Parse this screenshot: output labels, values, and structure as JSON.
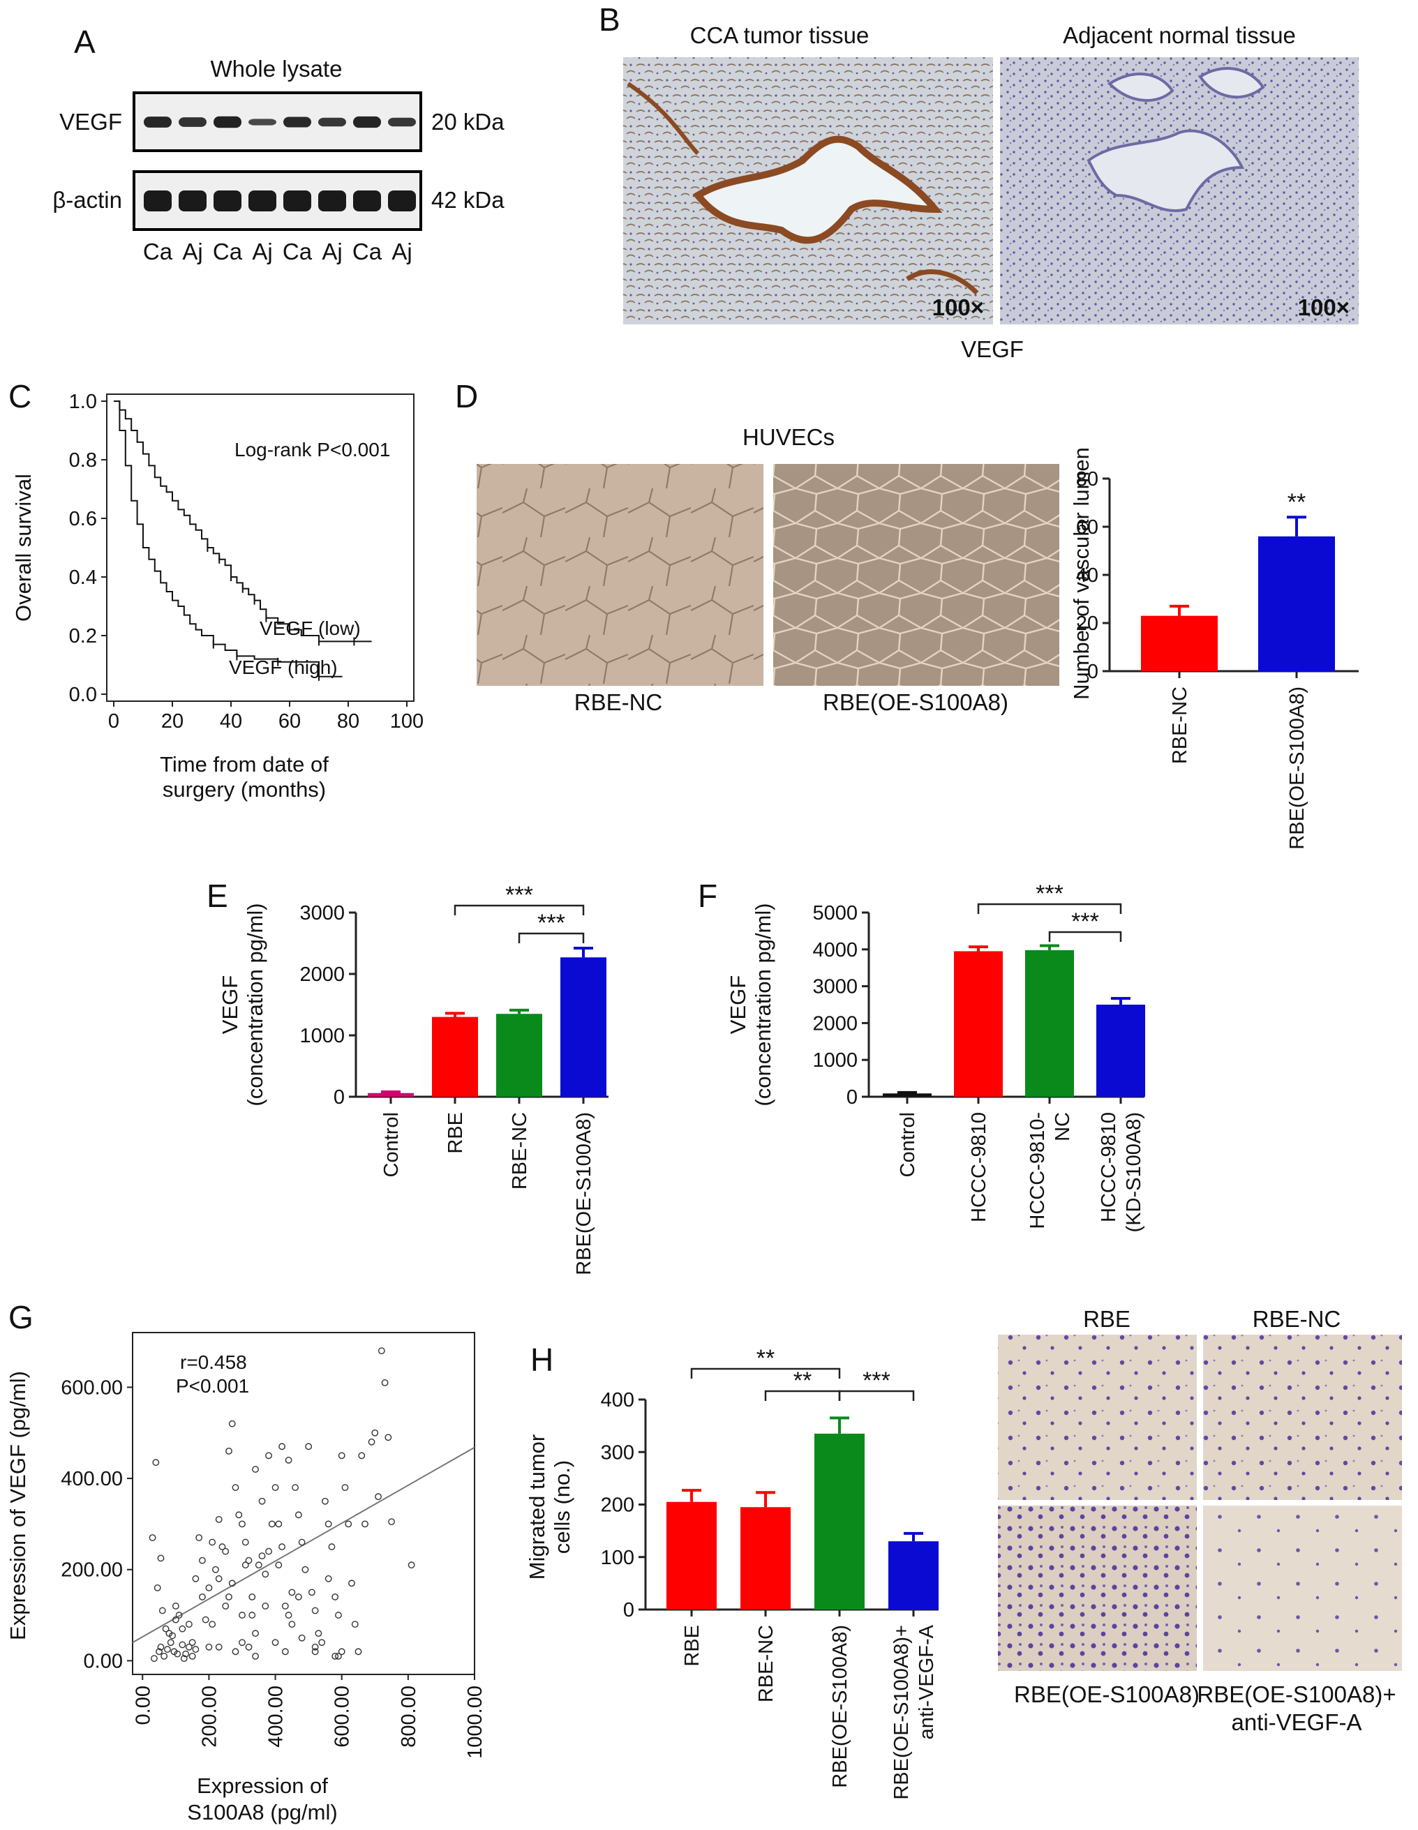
{
  "panels": {
    "A": {
      "label": "A",
      "title": "Whole lysate",
      "rows": [
        {
          "name": "VEGF",
          "size": "20 kDa",
          "intensity": [
            0.88,
            0.76,
            0.92,
            0.52,
            0.84,
            0.7,
            0.9,
            0.7
          ]
        },
        {
          "name": "β-actin",
          "size": "42 kDa",
          "intensity": [
            1,
            1,
            1,
            1,
            1,
            1,
            1,
            1
          ]
        }
      ],
      "lanes": [
        "Ca",
        "Aj",
        "Ca",
        "Aj",
        "Ca",
        "Aj",
        "Ca",
        "Aj"
      ]
    },
    "B": {
      "label": "B",
      "images": [
        {
          "title": "CCA tumor tissue",
          "mag": "100×"
        },
        {
          "title": "Adjacent normal tissue",
          "mag": "100×"
        }
      ],
      "caption": "VEGF"
    },
    "D_images": {
      "label": "D",
      "title": "HUVECs",
      "captions": [
        "RBE-NC",
        "RBE(OE-S100A8)"
      ]
    },
    "H_images": {
      "headers": [
        "RBE",
        "RBE-NC"
      ],
      "footers": [
        "RBE(OE-S100A8)",
        "RBE(OE-S100A8)+",
        "anti-VEGF-A"
      ]
    }
  },
  "colors": {
    "red": "#ff0000",
    "blue": "#0a0ad2",
    "green": "#0a8a1a",
    "magenta": "#d6006e",
    "black": "#111111",
    "axis": "#222222",
    "blot_bg": "#efefef",
    "band": "#1a1a1a",
    "ihc_tumor": "#cfd4da",
    "ihc_normal": "#c8cbd6",
    "huvec": "#c6b2a0",
    "transwell": "#e0d3c4",
    "cell": "#5b48a0"
  },
  "chart_data": [
    {
      "panel": "C",
      "type": "line",
      "xlabel": [
        "Time from date of",
        "surgery (months)"
      ],
      "ylabel": "Overall survival",
      "xlim": [
        0,
        100
      ],
      "ylim": [
        0,
        1.0
      ],
      "xticks": [
        "0",
        "20",
        "40",
        "60",
        "80",
        "100"
      ],
      "yticks": [
        "0.0",
        "0.2",
        "0.4",
        "0.6",
        "0.8",
        "1.0"
      ],
      "annotation": "Log-rank P<0.001",
      "series": [
        {
          "name": "VEGF (low)",
          "x": [
            0,
            2,
            4,
            6,
            8,
            10,
            12,
            14,
            16,
            18,
            20,
            22,
            24,
            26,
            28,
            30,
            32,
            34,
            36,
            38,
            40,
            42,
            44,
            46,
            48,
            50,
            52,
            56,
            60,
            64,
            70,
            76,
            82,
            88
          ],
          "y": [
            1.0,
            0.97,
            0.94,
            0.9,
            0.86,
            0.82,
            0.78,
            0.74,
            0.71,
            0.69,
            0.66,
            0.63,
            0.61,
            0.58,
            0.56,
            0.53,
            0.5,
            0.48,
            0.46,
            0.44,
            0.4,
            0.38,
            0.36,
            0.34,
            0.32,
            0.29,
            0.26,
            0.24,
            0.22,
            0.2,
            0.18,
            0.18,
            0.18,
            0.18
          ]
        },
        {
          "name": "VEGF (high)",
          "x": [
            0,
            2,
            4,
            6,
            8,
            10,
            12,
            14,
            16,
            18,
            20,
            22,
            24,
            26,
            28,
            30,
            34,
            38,
            42,
            48,
            56,
            64,
            70,
            78
          ],
          "y": [
            1.0,
            0.9,
            0.78,
            0.66,
            0.58,
            0.5,
            0.46,
            0.42,
            0.38,
            0.35,
            0.32,
            0.3,
            0.27,
            0.24,
            0.22,
            0.2,
            0.17,
            0.15,
            0.13,
            0.12,
            0.11,
            0.11,
            0.06,
            0.06
          ]
        }
      ]
    },
    {
      "panel": "D",
      "type": "bar",
      "ylabel": "Number of vascular lumen",
      "categories": [
        "RBE-NC",
        "RBE(OE-S100A8)"
      ],
      "values": [
        23,
        56
      ],
      "errors": [
        4,
        8
      ],
      "ylim": [
        0,
        80
      ],
      "yticks": [
        "0",
        "20",
        "40",
        "60",
        "80"
      ],
      "significance": [
        "",
        "**"
      ]
    },
    {
      "panel": "E",
      "type": "bar",
      "ylabel": [
        "VEGF",
        "(concentration pg/ml)"
      ],
      "categories": [
        "Control",
        "RBE",
        "RBE-NC",
        "RBE(OE-S100A8)"
      ],
      "values": [
        60,
        1300,
        1350,
        2270
      ],
      "errors": [
        20,
        60,
        60,
        150
      ],
      "ylim": [
        0,
        3000
      ],
      "yticks": [
        "0",
        "1000",
        "2000",
        "3000"
      ],
      "brackets": [
        {
          "from": 1,
          "to": 3,
          "label": "***"
        },
        {
          "from": 2,
          "to": 3,
          "label": "***"
        }
      ]
    },
    {
      "panel": "F",
      "type": "bar",
      "ylabel": [
        "VEGF",
        "(concentration pg/ml)"
      ],
      "categories": [
        [
          "Control"
        ],
        [
          "HCCC-9810"
        ],
        [
          "HCCC-9810-",
          "NC"
        ],
        [
          "HCCC-9810",
          "(KD-S100A8)"
        ]
      ],
      "values": [
        90,
        3950,
        3980,
        2500
      ],
      "errors": [
        25,
        120,
        120,
        170
      ],
      "ylim": [
        0,
        5000
      ],
      "yticks": [
        "0",
        "1000",
        "2000",
        "3000",
        "4000",
        "5000"
      ],
      "brackets": [
        {
          "from": 1,
          "to": 3,
          "label": "***"
        },
        {
          "from": 2,
          "to": 3,
          "label": "***"
        }
      ]
    },
    {
      "panel": "G",
      "type": "scatter",
      "xlabel": [
        "Expression of",
        "S100A8 (pg/ml)"
      ],
      "ylabel": "Expression of VEGF (pg/ml)",
      "xlim": [
        -30,
        1000
      ],
      "ylim": [
        -30,
        720
      ],
      "xticks": [
        "0.00",
        "200.00",
        "400.00",
        "600.00",
        "800.00",
        "1000.00"
      ],
      "yticks": [
        "0.00",
        "200.00",
        "400.00",
        "600.00"
      ],
      "annotation": [
        "r=0.458",
        "P<0.001"
      ],
      "fit": {
        "x0": -30,
        "y0": 40,
        "x1": 1000,
        "y1": 468
      },
      "points": [
        [
          40,
          435
        ],
        [
          30,
          270
        ],
        [
          55,
          225
        ],
        [
          45,
          160
        ],
        [
          60,
          110
        ],
        [
          70,
          70
        ],
        [
          80,
          60
        ],
        [
          90,
          55
        ],
        [
          100,
          90
        ],
        [
          110,
          100
        ],
        [
          55,
          30
        ],
        [
          50,
          20
        ],
        [
          65,
          10
        ],
        [
          75,
          25
        ],
        [
          95,
          20
        ],
        [
          120,
          35
        ],
        [
          130,
          15
        ],
        [
          140,
          30
        ],
        [
          150,
          40
        ],
        [
          160,
          25
        ],
        [
          105,
          15
        ],
        [
          125,
          5
        ],
        [
          35,
          5
        ],
        [
          85,
          40
        ],
        [
          160,
          180
        ],
        [
          170,
          270
        ],
        [
          180,
          220
        ],
        [
          190,
          90
        ],
        [
          210,
          80
        ],
        [
          230,
          310
        ],
        [
          250,
          240
        ],
        [
          260,
          460
        ],
        [
          270,
          520
        ],
        [
          280,
          380
        ],
        [
          290,
          320
        ],
        [
          300,
          300
        ],
        [
          310,
          210
        ],
        [
          320,
          220
        ],
        [
          330,
          100
        ],
        [
          340,
          60
        ],
        [
          260,
          140
        ],
        [
          270,
          170
        ],
        [
          280,
          20
        ],
        [
          300,
          40
        ],
        [
          320,
          30
        ],
        [
          340,
          10
        ],
        [
          360,
          230
        ],
        [
          370,
          190
        ],
        [
          380,
          240
        ],
        [
          390,
          300
        ],
        [
          400,
          380
        ],
        [
          410,
          210
        ],
        [
          420,
          250
        ],
        [
          430,
          120
        ],
        [
          440,
          100
        ],
        [
          450,
          80
        ],
        [
          460,
          380
        ],
        [
          470,
          320
        ],
        [
          480,
          260
        ],
        [
          490,
          200
        ],
        [
          500,
          470
        ],
        [
          510,
          150
        ],
        [
          520,
          110
        ],
        [
          530,
          60
        ],
        [
          540,
          40
        ],
        [
          550,
          350
        ],
        [
          560,
          300
        ],
        [
          570,
          250
        ],
        [
          580,
          140
        ],
        [
          590,
          100
        ],
        [
          600,
          450
        ],
        [
          610,
          380
        ],
        [
          620,
          300
        ],
        [
          630,
          170
        ],
        [
          640,
          80
        ],
        [
          660,
          450
        ],
        [
          670,
          300
        ],
        [
          690,
          480
        ],
        [
          700,
          500
        ],
        [
          720,
          680
        ],
        [
          730,
          610
        ],
        [
          740,
          490
        ],
        [
          710,
          360
        ],
        [
          750,
          305
        ],
        [
          810,
          210
        ],
        [
          230,
          180
        ],
        [
          210,
          260
        ],
        [
          180,
          140
        ],
        [
          150,
          10
        ],
        [
          200,
          30
        ],
        [
          230,
          30
        ],
        [
          370,
          120
        ],
        [
          400,
          40
        ],
        [
          450,
          150
        ],
        [
          520,
          30
        ],
        [
          590,
          10
        ],
        [
          600,
          20
        ],
        [
          650,
          20
        ],
        [
          470,
          140
        ],
        [
          410,
          300
        ],
        [
          380,
          450
        ],
        [
          360,
          350
        ],
        [
          340,
          420
        ],
        [
          420,
          470
        ],
        [
          440,
          440
        ],
        [
          300,
          100
        ],
        [
          330,
          140
        ],
        [
          200,
          160
        ],
        [
          120,
          70
        ],
        [
          100,
          120
        ],
        [
          140,
          80
        ],
        [
          560,
          180
        ],
        [
          580,
          10
        ],
        [
          520,
          20
        ],
        [
          480,
          50
        ],
        [
          430,
          20
        ],
        [
          350,
          210
        ],
        [
          310,
          260
        ],
        [
          250,
          120
        ],
        [
          220,
          200
        ],
        [
          240,
          250
        ]
      ]
    },
    {
      "panel": "H",
      "type": "bar",
      "ylabel": [
        "Migrated tumor",
        "cells (no.)"
      ],
      "categories": [
        [
          "RBE"
        ],
        [
          "RBE-NC"
        ],
        [
          "RBE(OE-S100A8)"
        ],
        [
          "RBE(OE-S100A8)+",
          "anti-VEGF-A"
        ]
      ],
      "values": [
        205,
        195,
        335,
        130
      ],
      "errors": [
        22,
        28,
        30,
        15
      ],
      "ylim": [
        0,
        400
      ],
      "yticks": [
        "0",
        "100",
        "200",
        "300",
        "400"
      ],
      "brackets": [
        {
          "from": 0,
          "to": 2,
          "label": "**"
        },
        {
          "from": 1,
          "to": 2,
          "label": "**"
        },
        {
          "from": 2,
          "to": 3,
          "label": "***"
        }
      ]
    }
  ]
}
